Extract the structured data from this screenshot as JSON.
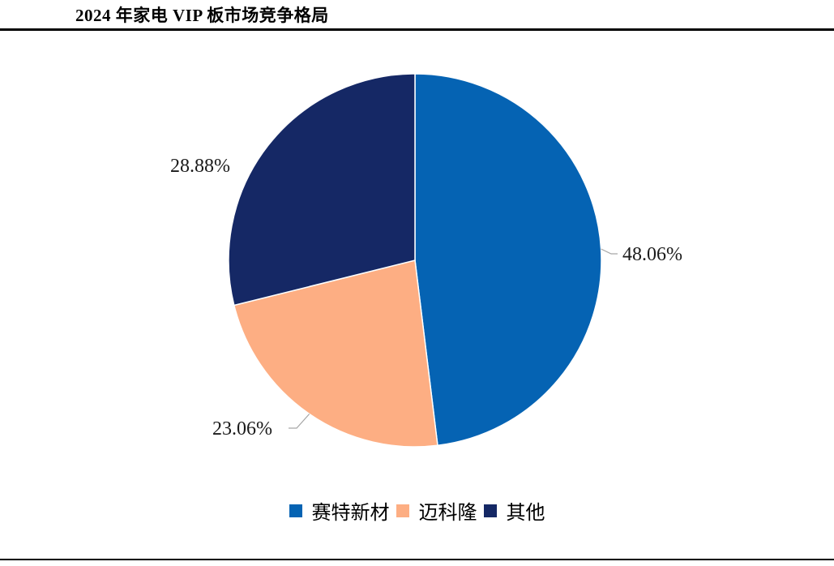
{
  "header": {
    "title": "2024 年家电 VIP 板市场竞争格局"
  },
  "chart_data": {
    "type": "pie",
    "title": "2024 年家电 VIP 板市场竞争格局",
    "categories": [
      "赛特新材",
      "迈科隆",
      "其他"
    ],
    "values": [
      48.06,
      23.06,
      28.88
    ],
    "labels": [
      "48.06%",
      "23.06%",
      "28.88%"
    ],
    "colors": [
      "#0563B3",
      "#FDAE83",
      "#152865"
    ],
    "start_angle": "12 o'clock",
    "direction": "clockwise",
    "legend_position": "bottom",
    "data_labels": "outside with leader lines"
  },
  "legend": {
    "items": [
      {
        "label": "赛特新材",
        "color": "#0563B3"
      },
      {
        "label": "迈科隆",
        "color": "#FDAE83"
      },
      {
        "label": "其他",
        "color": "#152865"
      }
    ]
  }
}
